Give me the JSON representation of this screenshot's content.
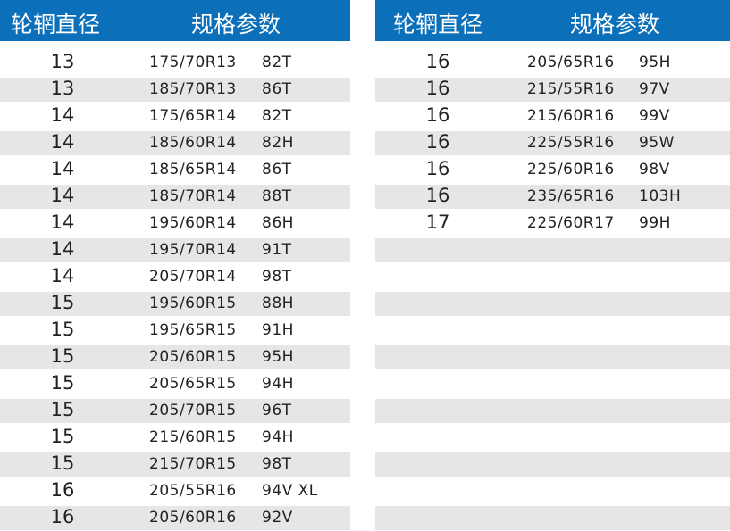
{
  "header": {
    "col1": "轮辋直径",
    "col2": "规格参数"
  },
  "colors": {
    "header_bg": "#0b6fba",
    "stripe": "#e6e6e8"
  },
  "left_rows": [
    {
      "d": "13",
      "s": "175/70R13",
      "l": "82T"
    },
    {
      "d": "13",
      "s": "185/70R13",
      "l": "86T"
    },
    {
      "d": "14",
      "s": "175/65R14",
      "l": "82T"
    },
    {
      "d": "14",
      "s": "185/60R14",
      "l": "82H"
    },
    {
      "d": "14",
      "s": "185/65R14",
      "l": "86T"
    },
    {
      "d": "14",
      "s": "185/70R14",
      "l": "88T"
    },
    {
      "d": "14",
      "s": "195/60R14",
      "l": "86H"
    },
    {
      "d": "14",
      "s": "195/70R14",
      "l": "91T"
    },
    {
      "d": "14",
      "s": "205/70R14",
      "l": "98T"
    },
    {
      "d": "15",
      "s": "195/60R15",
      "l": "88H"
    },
    {
      "d": "15",
      "s": "195/65R15",
      "l": "91H"
    },
    {
      "d": "15",
      "s": "205/60R15",
      "l": "95H"
    },
    {
      "d": "15",
      "s": "205/65R15",
      "l": "94H"
    },
    {
      "d": "15",
      "s": "205/70R15",
      "l": "96T"
    },
    {
      "d": "15",
      "s": "215/60R15",
      "l": "94H"
    },
    {
      "d": "15",
      "s": "215/70R15",
      "l": "98T"
    },
    {
      "d": "16",
      "s": "205/55R16",
      "l": "94V XL"
    },
    {
      "d": "16",
      "s": "205/60R16",
      "l": "92V"
    }
  ],
  "right_rows": [
    {
      "d": "16",
      "s": "205/65R16",
      "l": "95H"
    },
    {
      "d": "16",
      "s": "215/55R16",
      "l": "97V"
    },
    {
      "d": "16",
      "s": "215/60R16",
      "l": "99V"
    },
    {
      "d": "16",
      "s": "225/55R16",
      "l": "95W"
    },
    {
      "d": "16",
      "s": "225/60R16",
      "l": "98V"
    },
    {
      "d": "16",
      "s": "235/65R16",
      "l": "103H"
    },
    {
      "d": "17",
      "s": "225/60R17",
      "l": "99H"
    }
  ]
}
